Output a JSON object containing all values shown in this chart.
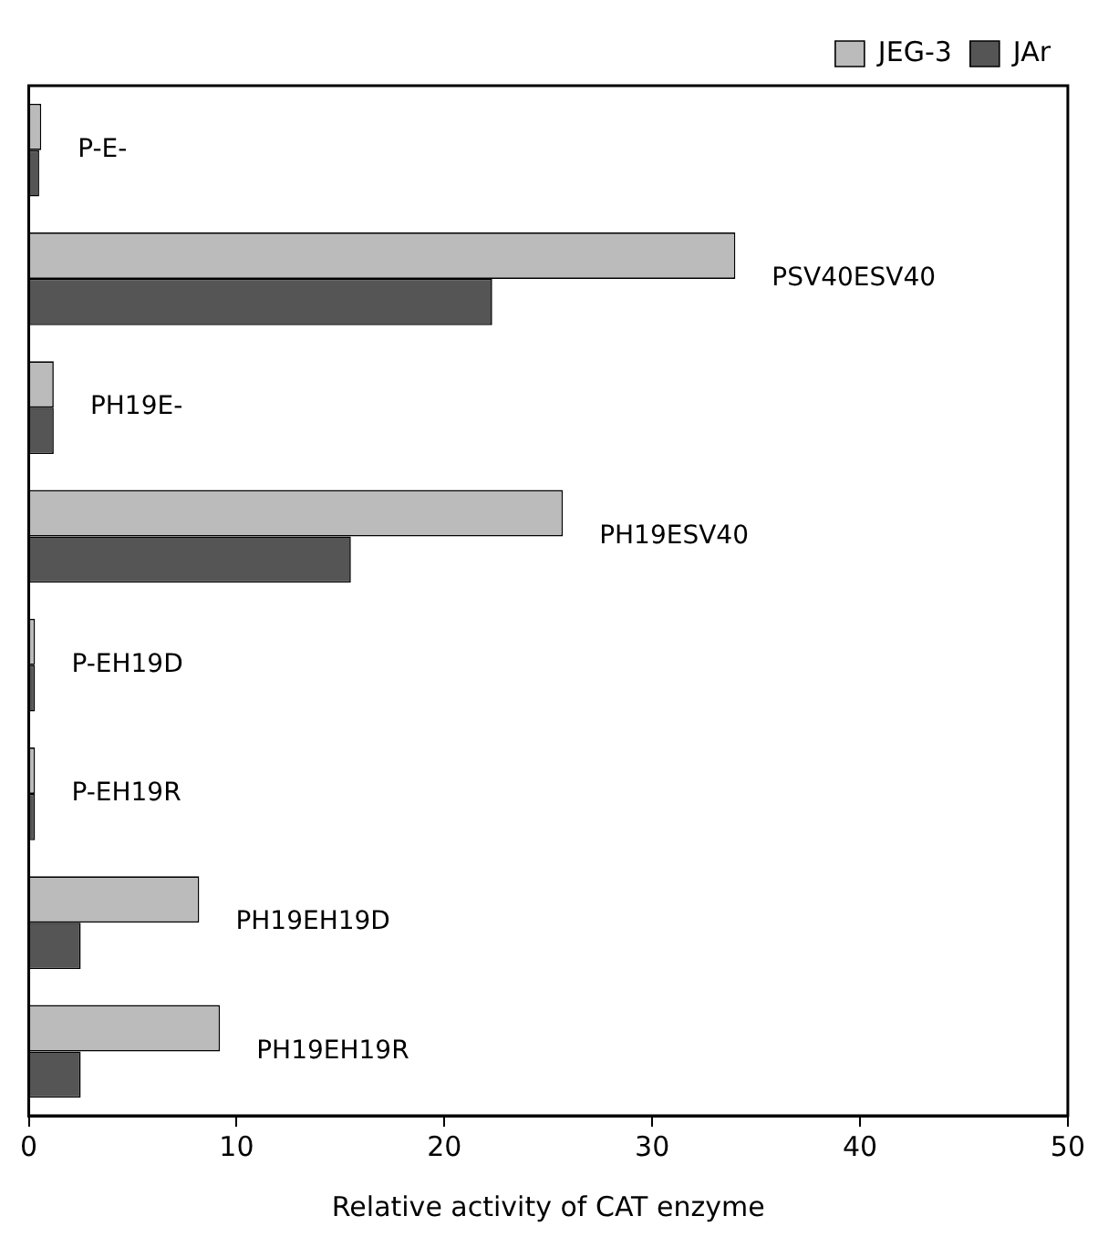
{
  "chart_data": {
    "type": "bar",
    "orientation": "horizontal",
    "xlabel": "Relative activity of CAT enzyme",
    "categories": [
      "P-E-",
      "PSV40ESV40",
      "PH19E-",
      "PH19ESV40",
      "P-EH19D",
      "P-EH19R",
      "PH19EH19D",
      "PH19EH19R"
    ],
    "series": [
      {
        "name": "JEG-3",
        "color": "#bbbbbb",
        "values": [
          0.6,
          34,
          1.2,
          25.7,
          0.3,
          0.3,
          8.2,
          9.2
        ]
      },
      {
        "name": "JAr",
        "color": "#555555",
        "values": [
          0.5,
          22.3,
          1.2,
          15.5,
          0.3,
          0.3,
          2.5,
          2.5
        ]
      }
    ],
    "xlim": [
      0,
      50
    ],
    "xticks": [
      0,
      10,
      20,
      30,
      40,
      50
    ],
    "grid": false,
    "legend": "top right",
    "tick_labels": "x"
  }
}
